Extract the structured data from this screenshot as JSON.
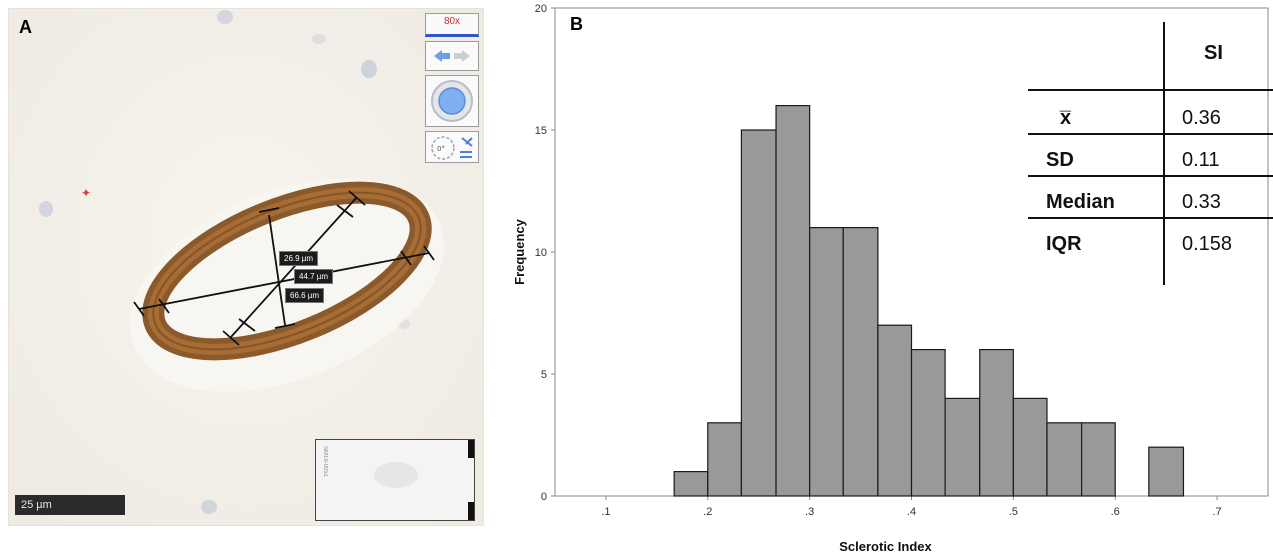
{
  "panel_a": {
    "letter": "A",
    "zoom_label": "80x",
    "measurements": [
      "26.9 µm",
      "44.7 µm",
      "66.6 µm"
    ],
    "scalebar_label": "25 µm",
    "thumbnail_label": "SM19-0051",
    "rotation_label": "0°"
  },
  "panel_b": {
    "letter": "B"
  },
  "chart_data": {
    "type": "bar",
    "xlabel": "Sclerotic Index",
    "ylabel": "Frequency",
    "xlim": [
      0.05,
      0.75
    ],
    "ylim": [
      0,
      20
    ],
    "x_ticks": [
      0.1,
      0.2,
      0.3,
      0.4,
      0.5,
      0.6,
      0.7
    ],
    "x_tick_labels": [
      ".1",
      ".2",
      ".3",
      ".4",
      ".5",
      ".6",
      ".7"
    ],
    "y_ticks": [
      0,
      5,
      10,
      15,
      20
    ],
    "y_tick_labels": [
      "0",
      "5",
      "10",
      "15",
      "20"
    ],
    "bins": [
      {
        "start": 0.167,
        "end": 0.2,
        "value": 1
      },
      {
        "start": 0.2,
        "end": 0.233,
        "value": 3
      },
      {
        "start": 0.233,
        "end": 0.267,
        "value": 15
      },
      {
        "start": 0.267,
        "end": 0.3,
        "value": 16
      },
      {
        "start": 0.3,
        "end": 0.333,
        "value": 11
      },
      {
        "start": 0.333,
        "end": 0.367,
        "value": 11
      },
      {
        "start": 0.367,
        "end": 0.4,
        "value": 7
      },
      {
        "start": 0.4,
        "end": 0.433,
        "value": 6
      },
      {
        "start": 0.433,
        "end": 0.467,
        "value": 4
      },
      {
        "start": 0.467,
        "end": 0.5,
        "value": 6
      },
      {
        "start": 0.5,
        "end": 0.533,
        "value": 4
      },
      {
        "start": 0.533,
        "end": 0.567,
        "value": 3
      },
      {
        "start": 0.567,
        "end": 0.6,
        "value": 3
      },
      {
        "start": 0.633,
        "end": 0.667,
        "value": 2
      }
    ],
    "bar_color": "#999999",
    "stats_table": {
      "header": "SI",
      "rows": [
        {
          "label": "x̅",
          "value": "0.36"
        },
        {
          "label": "SD",
          "value": "0.11"
        },
        {
          "label": "Median",
          "value": "0.33"
        },
        {
          "label": "IQR",
          "value": "0.158"
        }
      ]
    }
  }
}
